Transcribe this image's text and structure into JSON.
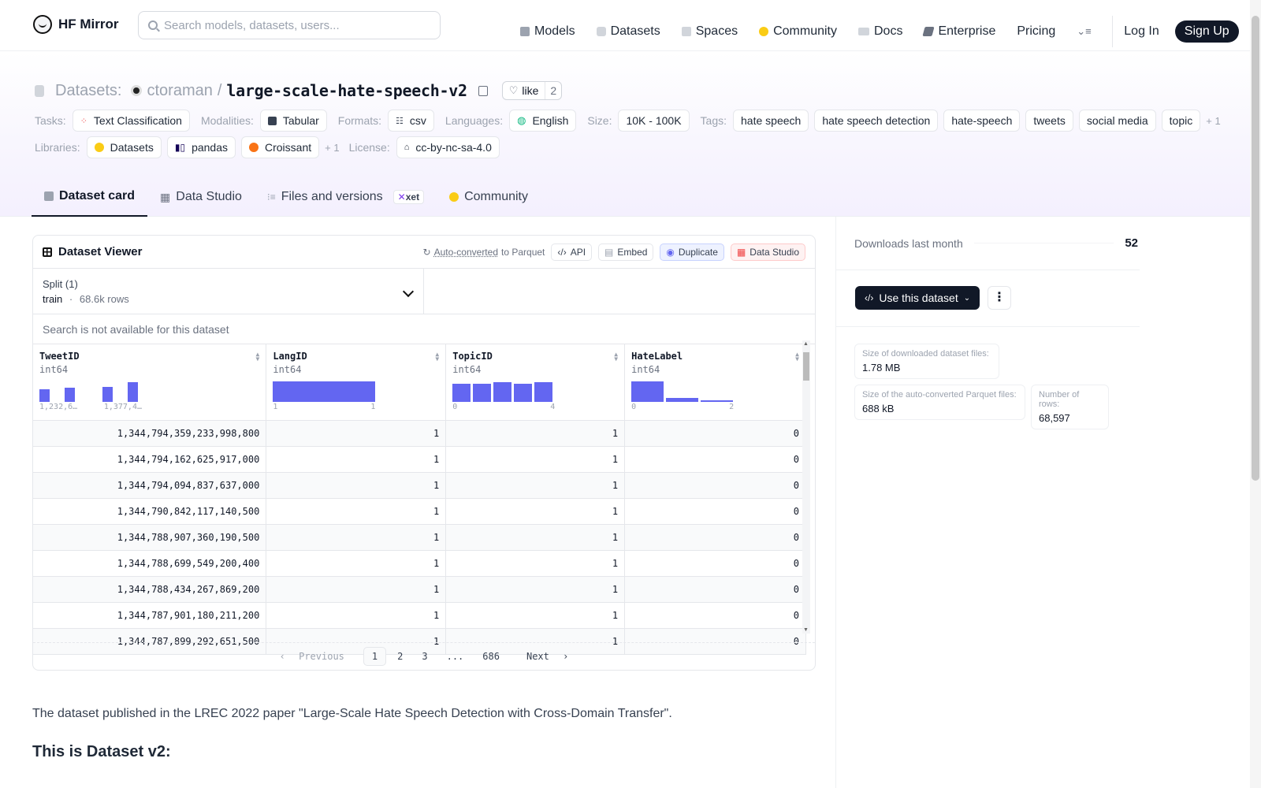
{
  "header": {
    "brand": "HF Mirror",
    "search_placeholder": "Search models, datasets, users...",
    "nav": [
      {
        "label": "Models",
        "icon": "cube-icon",
        "color": "#9ca3af"
      },
      {
        "label": "Datasets",
        "icon": "database-icon",
        "color": "#9ca3af"
      },
      {
        "label": "Spaces",
        "icon": "grid-icon",
        "color": "#9ca3af"
      },
      {
        "label": "Community",
        "icon": "hugging-face-icon",
        "color": "#facc15"
      },
      {
        "label": "Docs",
        "icon": "book-icon",
        "color": "#9ca3af"
      },
      {
        "label": "Enterprise",
        "icon": "enterprise-icon",
        "color": "#6b7280"
      },
      {
        "label": "Pricing"
      }
    ],
    "login": "Log In",
    "signup": "Sign Up"
  },
  "dataset": {
    "section": "Datasets:",
    "owner": "ctoraman",
    "slash": "/",
    "name": "large-scale-hate-speech-v2",
    "like_label": "like",
    "like_count": "2"
  },
  "tags": {
    "tasks_label": "Tasks:",
    "tasks": [
      "Text Classification"
    ],
    "modalities_label": "Modalities:",
    "modalities": [
      "Tabular"
    ],
    "formats_label": "Formats:",
    "formats": [
      "csv"
    ],
    "languages_label": "Languages:",
    "languages": [
      "English"
    ],
    "size_label": "Size:",
    "size": [
      "10K - 100K"
    ],
    "tags_label": "Tags:",
    "tags": [
      "hate speech",
      "hate speech detection",
      "hate-speech",
      "tweets",
      "social media",
      "topic"
    ],
    "tags_more": "+ 1",
    "libraries_label": "Libraries:",
    "libraries": [
      "Datasets",
      "pandas",
      "Croissant"
    ],
    "libraries_more": "+ 1",
    "license_label": "License:",
    "license": "cc-by-nc-sa-4.0"
  },
  "tabs": [
    "Dataset card",
    "Data Studio",
    "Files and versions",
    "Community"
  ],
  "xet_badge": "xet",
  "viewer": {
    "title": "Dataset Viewer",
    "auto_converted": "Auto-converted",
    "to_parquet": "to Parquet",
    "api": "API",
    "embed": "Embed",
    "duplicate": "Duplicate",
    "data_studio": "Data Studio",
    "split_label": "Split (1)",
    "split_name": "train",
    "split_dot": "·",
    "split_rows": "68.6k rows",
    "search_na": "Search is not available for this dataset",
    "columns": [
      {
        "name": "TweetID",
        "type": "int64",
        "hist": [
          0.62,
          0,
          0.7,
          0,
          0,
          0.72,
          0,
          0.95
        ],
        "hist_labels": [
          "1,232,6…",
          "1,377,4…"
        ]
      },
      {
        "name": "LangID",
        "type": "int64",
        "hist": [
          1
        ],
        "hist_labels": [
          "1",
          "1"
        ]
      },
      {
        "name": "TopicID",
        "type": "int64",
        "hist": [
          0.9,
          0.88,
          0.98,
          0.88,
          0.97
        ],
        "hist_labels": [
          "0",
          "4"
        ]
      },
      {
        "name": "HateLabel",
        "type": "int64",
        "hist": [
          1,
          0.2,
          0.04
        ],
        "hist_labels": [
          "0",
          "2"
        ]
      }
    ],
    "rows": [
      [
        "1,344,794,359,233,998,800",
        "1",
        "1",
        "0"
      ],
      [
        "1,344,794,162,625,917,000",
        "1",
        "1",
        "0"
      ],
      [
        "1,344,794,094,837,637,000",
        "1",
        "1",
        "0"
      ],
      [
        "1,344,790,842,117,140,500",
        "1",
        "1",
        "0"
      ],
      [
        "1,344,788,907,360,190,500",
        "1",
        "1",
        "0"
      ],
      [
        "1,344,788,699,549,200,400",
        "1",
        "1",
        "0"
      ],
      [
        "1,344,788,434,267,869,200",
        "1",
        "1",
        "0"
      ],
      [
        "1,344,787,901,180,211,200",
        "1",
        "1",
        "0"
      ],
      [
        "1,344,787,899,292,651,500",
        "1",
        "1",
        "0"
      ]
    ],
    "pager": {
      "previous": "Previous",
      "pages": [
        "1",
        "2",
        "3",
        "...",
        "686"
      ],
      "next": "Next",
      "current": "1"
    }
  },
  "card": {
    "description": "The dataset published in the LREC 2022 paper \"Large-Scale Hate Speech Detection with Cross-Domain Transfer\".",
    "heading": "This is Dataset v2:"
  },
  "sidebar": {
    "downloads_label": "Downloads last month",
    "downloads": "52",
    "use_button": "Use this dataset",
    "files_size_label": "Size of downloaded dataset files:",
    "files_size": "1.78 MB",
    "parquet_size_label": "Size of the auto-converted Parquet files:",
    "parquet_size": "688 kB",
    "rows_label": "Number of rows:",
    "rows": "68,597"
  }
}
